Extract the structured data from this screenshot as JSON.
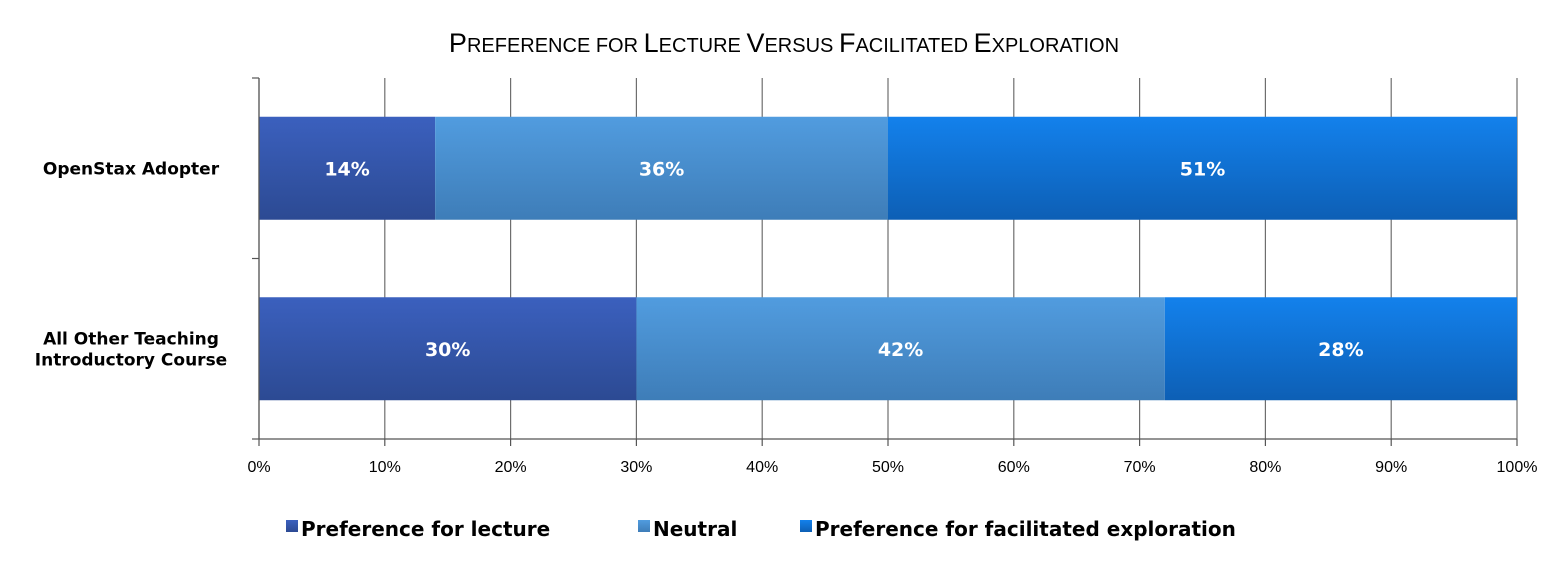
{
  "chart_data": {
    "type": "bar",
    "orientation": "horizontal",
    "stacked": true,
    "title": "Preference for Lecture Versus Facilitated Exploration",
    "categories": [
      "OpenStax Adopter",
      "All Other Teaching Introductory Course"
    ],
    "category_lines": [
      [
        "OpenStax Adopter"
      ],
      [
        "All Other Teaching",
        "Introductory Course"
      ]
    ],
    "series": [
      {
        "name": "Preference for lecture",
        "values": [
          14,
          30
        ],
        "labels": [
          "14%",
          "30%"
        ],
        "color": "#3657B0"
      },
      {
        "name": "Neutral",
        "values": [
          36,
          42
        ],
        "labels": [
          "36%",
          "42%"
        ],
        "color": "#4A8FD4"
      },
      {
        "name": "Preference for facilitated exploration",
        "values": [
          51,
          28
        ],
        "labels": [
          "51%",
          "28%"
        ],
        "color": "#1A78DD"
      }
    ],
    "xlim": [
      0,
      100
    ],
    "xticks": [
      0,
      10,
      20,
      30,
      40,
      50,
      60,
      70,
      80,
      90,
      100
    ],
    "xtick_labels": [
      "0%",
      "10%",
      "20%",
      "30%",
      "40%",
      "50%",
      "60%",
      "70%",
      "80%",
      "90%",
      "100%"
    ],
    "grid": true,
    "legend_position": "bottom",
    "xlabel": "",
    "ylabel": ""
  }
}
